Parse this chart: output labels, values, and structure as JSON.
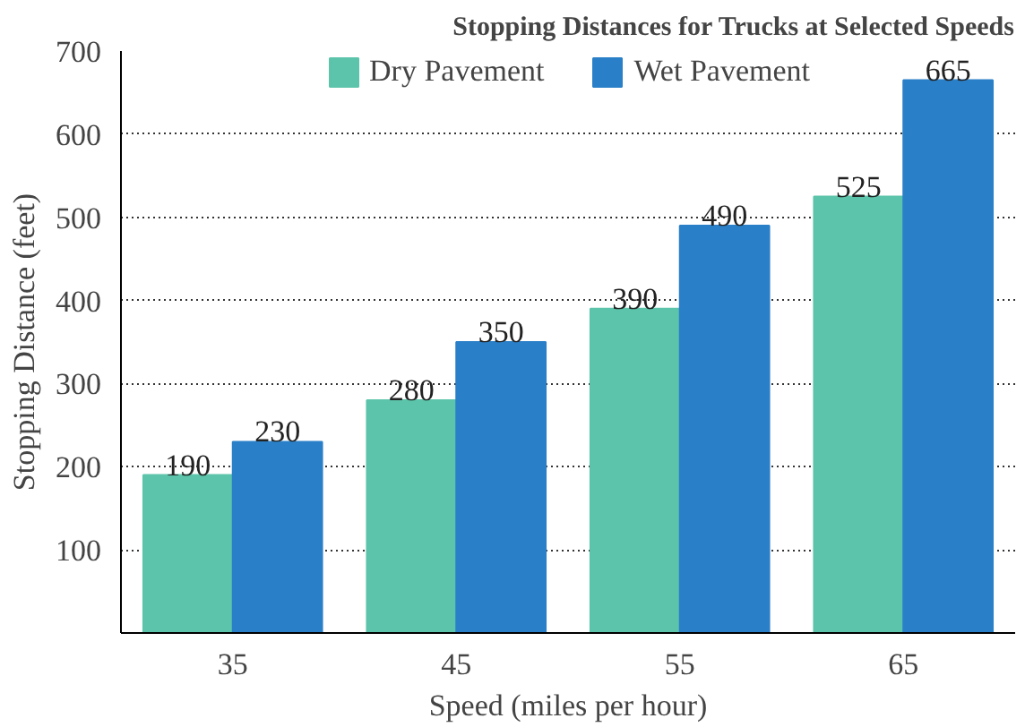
{
  "chart_data": {
    "type": "bar",
    "title": "Stopping Distances for Trucks at Selected Speeds",
    "xlabel": "Speed (miles per hour)",
    "ylabel": "Stopping Distance (feet)",
    "categories": [
      "35",
      "45",
      "55",
      "65"
    ],
    "series": [
      {
        "name": "Dry Pavement",
        "color": "#5cc4aa",
        "values": [
          190,
          280,
          390,
          525
        ]
      },
      {
        "name": "Wet Pavement",
        "color": "#2a80c8",
        "values": [
          230,
          350,
          490,
          665
        ]
      }
    ],
    "ylim": [
      0,
      700
    ],
    "yticks": [
      100,
      200,
      300,
      400,
      500,
      600,
      700
    ],
    "grid": "y",
    "legend": "top",
    "data_labels": true
  }
}
